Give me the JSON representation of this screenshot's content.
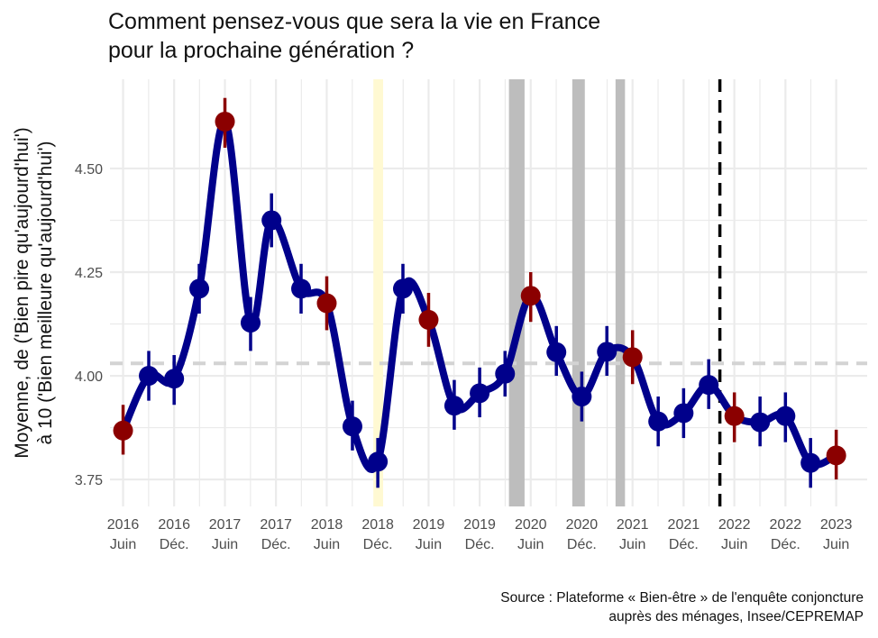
{
  "chart_data": {
    "type": "line",
    "title_lines": [
      "Comment pensez-vous que sera la vie en France",
      "pour la prochaine génération ?"
    ],
    "ylabel_lines": [
      "Moyenne, de  ('Bien pire qu'aujourd'hui')",
      "à 10 ('Bien meilleure qu'aujourd'hui')"
    ],
    "xlabel": "",
    "caption_lines": [
      "Source : Plateforme « Bien-être » de l'enquête conjoncture",
      "auprès des ménages, Insee/CEPREMAP"
    ],
    "y_ticks": [
      3.75,
      4.0,
      4.25,
      4.5
    ],
    "y_tick_labels": [
      "3.75",
      "4.00",
      "4.25",
      "4.50"
    ],
    "ylim": [
      3.685,
      4.715
    ],
    "xlim": [
      "2016-04-15",
      "2023-09-20"
    ],
    "x_ticks": [
      {
        "date": "2016-06-01",
        "year": "2016",
        "label": "Juin"
      },
      {
        "date": "2016-12-01",
        "year": "2016",
        "label": "Déc."
      },
      {
        "date": "2017-06-01",
        "year": "2017",
        "label": "Juin"
      },
      {
        "date": "2017-12-01",
        "year": "2017",
        "label": "Déc."
      },
      {
        "date": "2018-06-01",
        "year": "2018",
        "label": "Juin"
      },
      {
        "date": "2018-12-01",
        "year": "2018",
        "label": "Déc."
      },
      {
        "date": "2019-06-01",
        "year": "2019",
        "label": "Juin"
      },
      {
        "date": "2019-12-01",
        "year": "2019",
        "label": "Déc."
      },
      {
        "date": "2020-06-01",
        "year": "2020",
        "label": "Juin"
      },
      {
        "date": "2020-12-01",
        "year": "2020",
        "label": "Déc."
      },
      {
        "date": "2021-06-01",
        "year": "2021",
        "label": "Juin"
      },
      {
        "date": "2021-12-01",
        "year": "2021",
        "label": "Déc."
      },
      {
        "date": "2022-06-01",
        "year": "2022",
        "label": "Juin"
      },
      {
        "date": "2022-12-01",
        "year": "2022",
        "label": "Déc."
      },
      {
        "date": "2023-06-01",
        "year": "2023",
        "label": "Juin"
      }
    ],
    "series": [
      {
        "points": [
          {
            "date": "2016-06-01",
            "value": 3.868,
            "low": 3.81,
            "high": 3.93,
            "highlight": true
          },
          {
            "date": "2016-09-01",
            "value": 4.0,
            "low": 3.94,
            "high": 4.06,
            "highlight": false
          },
          {
            "date": "2016-12-01",
            "value": 3.993,
            "low": 3.93,
            "high": 4.05,
            "highlight": false
          },
          {
            "date": "2017-03-01",
            "value": 4.21,
            "low": 4.15,
            "high": 4.27,
            "highlight": false
          },
          {
            "date": "2017-06-01",
            "value": 4.613,
            "low": 4.55,
            "high": 4.67,
            "highlight": true
          },
          {
            "date": "2017-09-01",
            "value": 4.128,
            "low": 4.06,
            "high": 4.19,
            "highlight": false
          },
          {
            "date": "2017-11-15",
            "value": 4.375,
            "low": 4.31,
            "high": 4.44,
            "highlight": false
          },
          {
            "date": "2018-03-01",
            "value": 4.21,
            "low": 4.15,
            "high": 4.27,
            "highlight": false
          },
          {
            "date": "2018-06-01",
            "value": 4.175,
            "low": 4.11,
            "high": 4.24,
            "highlight": true
          },
          {
            "date": "2018-09-01",
            "value": 3.878,
            "low": 3.82,
            "high": 3.94,
            "highlight": false
          },
          {
            "date": "2018-12-01",
            "value": 3.793,
            "low": 3.73,
            "high": 3.85,
            "highlight": false
          },
          {
            "date": "2019-03-01",
            "value": 4.21,
            "low": 4.15,
            "high": 4.27,
            "highlight": false
          },
          {
            "date": "2019-06-01",
            "value": 4.135,
            "low": 4.07,
            "high": 4.2,
            "highlight": true
          },
          {
            "date": "2019-09-01",
            "value": 3.928,
            "low": 3.87,
            "high": 3.99,
            "highlight": false
          },
          {
            "date": "2019-12-01",
            "value": 3.958,
            "low": 3.9,
            "high": 4.02,
            "highlight": false
          },
          {
            "date": "2020-03-01",
            "value": 4.005,
            "low": 3.95,
            "high": 4.06,
            "highlight": false
          },
          {
            "date": "2020-06-01",
            "value": 4.193,
            "low": 4.13,
            "high": 4.25,
            "highlight": true
          },
          {
            "date": "2020-09-01",
            "value": 4.057,
            "low": 4.0,
            "high": 4.12,
            "highlight": false
          },
          {
            "date": "2020-12-01",
            "value": 3.95,
            "low": 3.89,
            "high": 4.01,
            "highlight": false
          },
          {
            "date": "2021-03-01",
            "value": 4.058,
            "low": 4.0,
            "high": 4.12,
            "highlight": false
          },
          {
            "date": "2021-06-01",
            "value": 4.045,
            "low": 3.98,
            "high": 4.11,
            "highlight": true
          },
          {
            "date": "2021-09-01",
            "value": 3.89,
            "low": 3.83,
            "high": 3.95,
            "highlight": false
          },
          {
            "date": "2021-12-01",
            "value": 3.91,
            "low": 3.85,
            "high": 3.97,
            "highlight": false
          },
          {
            "date": "2022-03-01",
            "value": 3.978,
            "low": 3.92,
            "high": 4.04,
            "highlight": false
          },
          {
            "date": "2022-06-01",
            "value": 3.903,
            "low": 3.84,
            "high": 3.96,
            "highlight": true
          },
          {
            "date": "2022-09-01",
            "value": 3.888,
            "low": 3.83,
            "high": 3.95,
            "highlight": false
          },
          {
            "date": "2022-12-01",
            "value": 3.903,
            "low": 3.84,
            "high": 3.96,
            "highlight": false
          },
          {
            "date": "2023-03-01",
            "value": 3.79,
            "low": 3.73,
            "high": 3.85,
            "highlight": false
          },
          {
            "date": "2023-06-01",
            "value": 3.808,
            "low": 3.75,
            "high": 3.87,
            "highlight": true
          }
        ]
      }
    ],
    "reference_line": {
      "value": 4.03,
      "style": "dashed",
      "color": "#d3d3d3"
    },
    "vertical_line": {
      "date": "2022-04-10",
      "style": "dashed",
      "color": "#000000"
    },
    "shaded_periods": [
      {
        "start": "2018-11-15",
        "end": "2018-12-20",
        "color": "#fff9d2"
      },
      {
        "start": "2020-03-15",
        "end": "2020-05-10",
        "color": "#bdbdbd"
      },
      {
        "start": "2020-10-28",
        "end": "2020-12-12",
        "color": "#bdbdbd"
      },
      {
        "start": "2021-04-01",
        "end": "2021-05-05",
        "color": "#bdbdbd"
      }
    ],
    "colors": {
      "line": "#00008b",
      "point": "#00008b",
      "highlight": "#8b0000",
      "grid": "#ebebeb"
    },
    "grid": true,
    "legend": "none"
  }
}
